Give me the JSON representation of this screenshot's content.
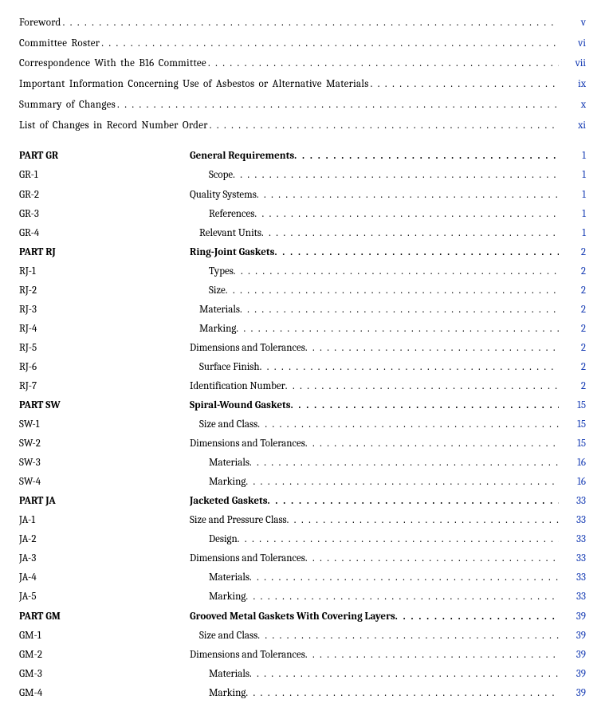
{
  "colors": {
    "text": "#000000",
    "page_link": "#1a3fb5",
    "background": "#ffffff"
  },
  "typography": {
    "font_family": "Cambria, Georgia, serif",
    "base_size_pt": 10,
    "line_height": 1.85
  },
  "front_matter": [
    {
      "title": "Foreword",
      "page": "v",
      "word_spacing": "2px"
    },
    {
      "title": "Committee Roster",
      "page": "vi",
      "word_spacing": "2px"
    },
    {
      "title": "Correspondence With the B16 Committee",
      "page": "vii",
      "word_spacing": "2px"
    },
    {
      "title": "Important Information Concerning Use of Asbestos or Alternative Materials",
      "page": "ix",
      "word_spacing": "2px"
    },
    {
      "title": "Summary of Changes",
      "page": "x",
      "word_spacing": "2px"
    },
    {
      "title": "List of Changes in Record Number Order",
      "page": "xi",
      "word_spacing": "2px"
    }
  ],
  "sections": [
    {
      "code": "PART GR",
      "title": "General Requirements",
      "page": "1",
      "bold": true,
      "items": [
        {
          "code": "GR-1",
          "title": "Scope",
          "page": "1",
          "indent": 24
        },
        {
          "code": "GR-2",
          "title": "Quality Systems",
          "page": "1",
          "indent": 0
        },
        {
          "code": "GR-3",
          "title": "References",
          "page": "1",
          "indent": 24
        },
        {
          "code": "GR-4",
          "title": "Relevant Units",
          "page": "1",
          "indent": 12
        }
      ]
    },
    {
      "code": "PART RJ",
      "title": "Ring-Joint Gaskets",
      "page": "2",
      "bold": true,
      "items": [
        {
          "code": "RJ-1",
          "title": "Types",
          "page": "2",
          "indent": 24
        },
        {
          "code": "RJ-2",
          "title": "Size",
          "page": "2",
          "indent": 24
        },
        {
          "code": "RJ-3",
          "title": "Materials",
          "page": "2",
          "indent": 12
        },
        {
          "code": "RJ-4",
          "title": "Marking",
          "page": "2",
          "indent": 12
        },
        {
          "code": "RJ-5",
          "title": "Dimensions and Tolerances",
          "page": "2",
          "indent": 0
        },
        {
          "code": "RJ-6",
          "title": "Surface Finish",
          "page": "2",
          "indent": 12
        },
        {
          "code": "RJ-7",
          "title": "Identification Number",
          "page": "2",
          "indent": 0
        }
      ]
    },
    {
      "code": "PART SW",
      "title": "Spiral-Wound Gaskets",
      "page": "15",
      "bold": true,
      "items": [
        {
          "code": "SW-1",
          "title": "Size and Class",
          "page": "15",
          "indent": 12
        },
        {
          "code": "SW-2",
          "title": "Dimensions and Tolerances",
          "page": "15",
          "indent": 0
        },
        {
          "code": "SW-3",
          "title": "Materials",
          "page": "16",
          "indent": 24
        },
        {
          "code": "SW-4",
          "title": "Marking",
          "page": "16",
          "indent": 24
        }
      ]
    },
    {
      "code": "PART JA",
      "title": "Jacketed Gaskets",
      "page": "33",
      "bold": true,
      "items": [
        {
          "code": "JA-1",
          "title": "Size and Pressure Class",
          "page": "33",
          "indent": 0
        },
        {
          "code": "JA-2",
          "title": "Design",
          "page": "33",
          "indent": 24
        },
        {
          "code": "JA-3",
          "title": "Dimensions and Tolerances",
          "page": "33",
          "indent": 0
        },
        {
          "code": "JA-4",
          "title": "Materials",
          "page": "33",
          "indent": 24
        },
        {
          "code": "JA-5",
          "title": "Marking",
          "page": "33",
          "indent": 24
        }
      ]
    },
    {
      "code": "PART GM",
      "title": "Grooved Metal Gaskets With Covering Layers",
      "page": "39",
      "bold": true,
      "items": [
        {
          "code": "GM-1",
          "title": "Size and Class",
          "page": "39",
          "indent": 12
        },
        {
          "code": "GM-2",
          "title": "Dimensions and Tolerances",
          "page": "39",
          "indent": 0
        },
        {
          "code": "GM-3",
          "title": "Materials",
          "page": "39",
          "indent": 24
        },
        {
          "code": "GM-4",
          "title": "Marking",
          "page": "39",
          "indent": 24
        }
      ]
    }
  ]
}
